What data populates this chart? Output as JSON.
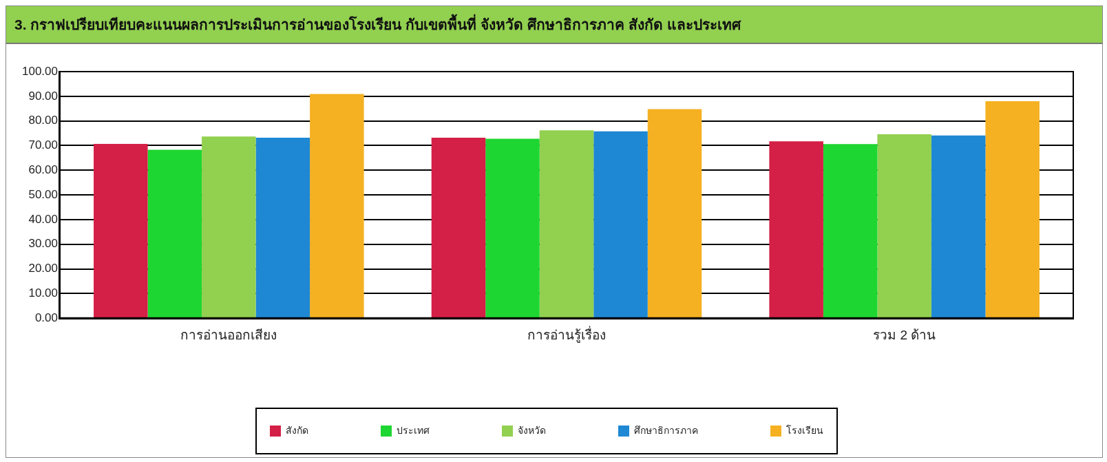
{
  "chart_data": {
    "type": "bar",
    "title": "3. กราฟเปรียบเทียบคะแนนผลการประเมินการอ่านของโรงเรียน กับเขตพื้นที่ จังหวัด ศึกษาธิการภาค สังกัด และประเทศ",
    "categories": [
      "การอ่านออกเสียง",
      "การอ่านรู้เรื่อง",
      "รวม 2 ด้าน"
    ],
    "series": [
      {
        "name": "สังกัด",
        "color": "#d41f46",
        "values": [
          70.7,
          73.2,
          71.7
        ]
      },
      {
        "name": "ประเทศ",
        "color": "#1ed631",
        "values": [
          68.3,
          72.8,
          70.6
        ]
      },
      {
        "name": "จังหวัด",
        "color": "#92d050",
        "values": [
          73.7,
          76.2,
          74.6
        ]
      },
      {
        "name": "ศึกษาธิการภาค",
        "color": "#1e88d4",
        "values": [
          73.2,
          75.8,
          74.1
        ]
      },
      {
        "name": "โรงเรียน",
        "color": "#f5b122",
        "values": [
          90.9,
          84.8,
          88.0
        ]
      }
    ],
    "ylim": [
      0,
      100
    ],
    "yticks": [
      {
        "value": 0,
        "label": "0.00"
      },
      {
        "value": 10,
        "label": "10.00"
      },
      {
        "value": 20,
        "label": "20.00"
      },
      {
        "value": 30,
        "label": "30.00"
      },
      {
        "value": 40,
        "label": "40.00"
      },
      {
        "value": 50,
        "label": "50.00"
      },
      {
        "value": 60,
        "label": "60.00"
      },
      {
        "value": 70,
        "label": "70.00"
      },
      {
        "value": 80,
        "label": "80.00"
      },
      {
        "value": 90,
        "label": "90.00"
      },
      {
        "value": 100,
        "label": "100.00"
      }
    ],
    "grid": "y",
    "legend": "bottom"
  }
}
